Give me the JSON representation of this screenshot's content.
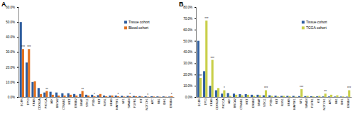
{
  "chart_data": [
    {
      "type": "bar",
      "title": "A",
      "categories": [
        "EGFR",
        "TP53",
        "KRAS",
        "CDKN2A",
        "PIK3CA",
        "ALK",
        "BRCA2",
        "CTNNB1",
        "MET",
        "ERBB2",
        "BRAF",
        "STK11",
        "PTEN",
        "RET",
        "ROS1",
        "NRAS",
        "MAP2K1",
        "NF1",
        "SMAD4",
        "FGFR1",
        "KIT",
        "NOTCH1",
        "APC",
        "RB1",
        "IDH1",
        "ERBB4"
      ],
      "series": [
        {
          "name": "Tissue cohort",
          "color": "#2e5d9e",
          "values": [
            50,
            23,
            10,
            6,
            3,
            3.5,
            3,
            2.5,
            2.5,
            2,
            2,
            1.5,
            1.5,
            1.2,
            1,
            1,
            1,
            0.8,
            0.8,
            0.7,
            0.6,
            0.5,
            0.5,
            0.4,
            0.4,
            0.3
          ]
        },
        {
          "name": "Blood cohort",
          "color": "#e0701e",
          "values": [
            32,
            32,
            10.5,
            2,
            4,
            1.5,
            1,
            1,
            1.5,
            1,
            4,
            1,
            0.5,
            2,
            0.5,
            1,
            0.5,
            0.3,
            0.5,
            0.5,
            0.3,
            0.2,
            0.3,
            0.2,
            0.2,
            0.5
          ],
          "significance": [
            "***",
            "***",
            null,
            null,
            "**",
            null,
            null,
            null,
            null,
            null,
            "**",
            null,
            "*",
            null,
            null,
            null,
            "*",
            null,
            "*",
            null,
            null,
            "*",
            null,
            null,
            null,
            "*"
          ]
        }
      ],
      "ylim": [
        0,
        60
      ],
      "yticks": [
        {
          "value": 0,
          "label": "0.0%"
        },
        {
          "value": 10,
          "label": "10.0%"
        },
        {
          "value": 20,
          "label": "20.0%"
        },
        {
          "value": 30,
          "label": "30.0%"
        },
        {
          "value": 40,
          "label": "40.0%"
        },
        {
          "value": 50,
          "label": "50.0%"
        },
        {
          "value": 60,
          "label": "60.0%"
        }
      ],
      "grid": false,
      "legend": "top-right"
    },
    {
      "type": "bar",
      "title": "B",
      "categories": [
        "EGFR",
        "TP53",
        "KRAS",
        "CDKN2A",
        "PIK3CA",
        "ALK",
        "BRCA2",
        "CTNNB1",
        "MET",
        "ERBB2",
        "BRAF",
        "STK11",
        "PTEN",
        "RET",
        "ROS1",
        "NRAS",
        "MAP2K1",
        "NF1",
        "SMAD4",
        "FGFR1",
        "KIT",
        "NOTCH1",
        "APC",
        "RB1",
        "IDH1",
        "ERBB4"
      ],
      "series": [
        {
          "name": "Tissue cohort",
          "color": "#2e5d9e",
          "values": [
            50,
            23,
            10,
            6,
            3,
            3.5,
            3,
            2.5,
            2.5,
            2,
            2,
            1.5,
            1.5,
            1.2,
            1,
            1,
            1,
            0.8,
            0.8,
            0.7,
            0.6,
            0.5,
            0.5,
            0.4,
            0.4,
            0.3
          ]
        },
        {
          "name": "TCGA cohort",
          "color": "#c9cf4a",
          "values": [
            17,
            68,
            33,
            8,
            6,
            1,
            2,
            1.5,
            2,
            1,
            1.5,
            6,
            1,
            0.5,
            1,
            0.8,
            0.3,
            7,
            1,
            0.5,
            1,
            3,
            2,
            1.5,
            0.5,
            6
          ],
          "significance": [
            "***",
            "***",
            "***",
            null,
            "*",
            null,
            null,
            null,
            null,
            null,
            null,
            "***",
            null,
            null,
            null,
            null,
            null,
            "***",
            null,
            null,
            null,
            "**",
            null,
            null,
            null,
            "***"
          ]
        }
      ],
      "ylim": [
        0,
        80
      ],
      "yticks": [
        {
          "value": 0,
          "label": "0.0%"
        },
        {
          "value": 10,
          "label": "10.0%"
        },
        {
          "value": 20,
          "label": "20.0%"
        },
        {
          "value": 30,
          "label": "30.0%"
        },
        {
          "value": 40,
          "label": "40.0%"
        },
        {
          "value": 50,
          "label": "50.0%"
        },
        {
          "value": 60,
          "label": "60.0%"
        },
        {
          "value": 70,
          "label": "70.0%"
        },
        {
          "value": 80,
          "label": "80.0%"
        }
      ],
      "grid": false,
      "legend": "top-right"
    }
  ]
}
